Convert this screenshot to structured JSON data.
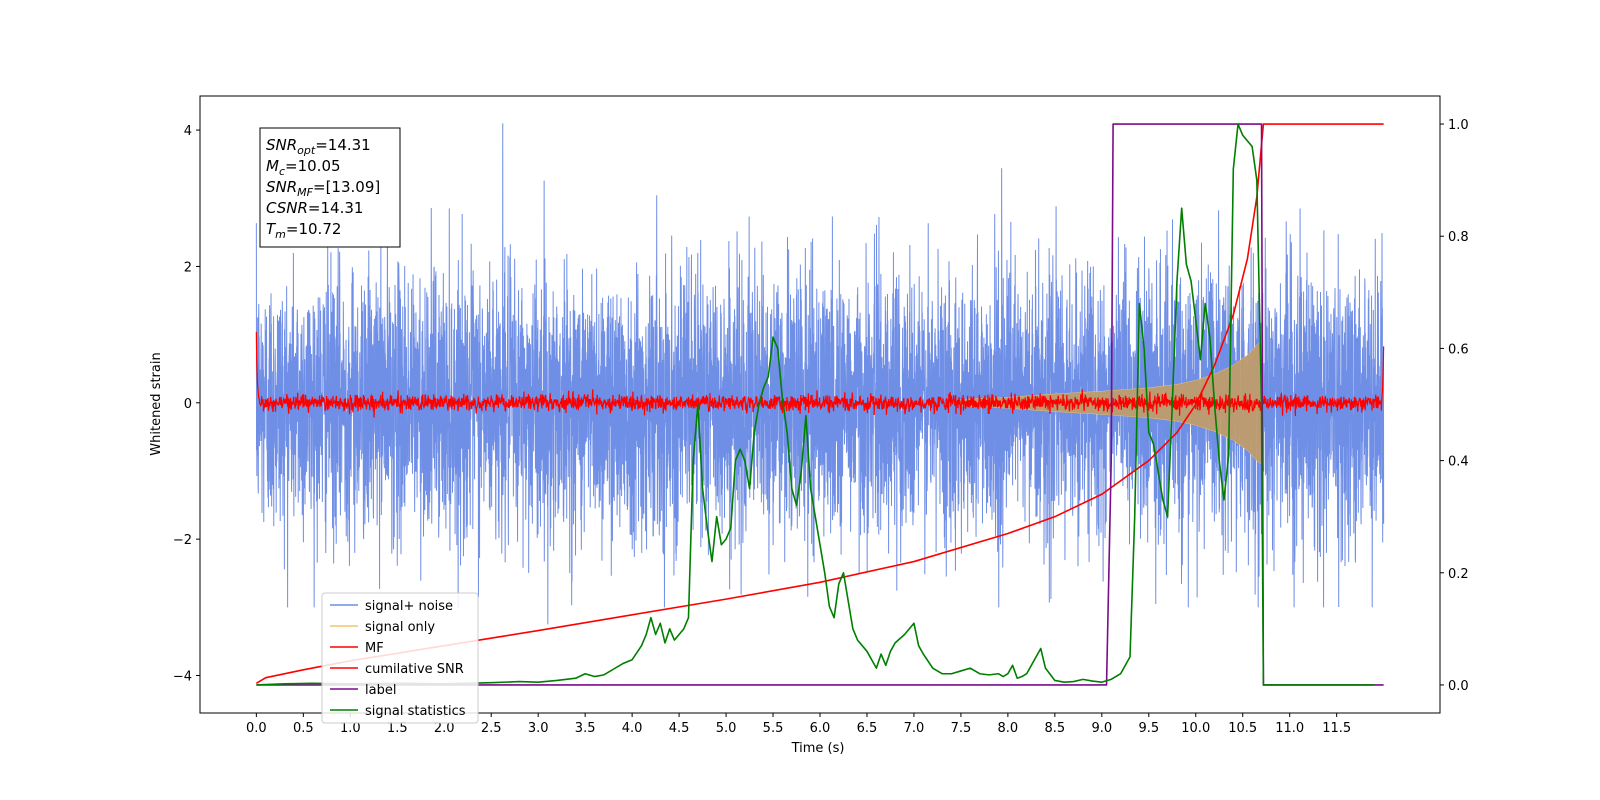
{
  "chart_data": {
    "type": "line",
    "xlabel": "Time (s)",
    "ylabel": "Whitened strain",
    "xlim": [
      -0.6,
      12.6
    ],
    "ylim": [
      -4.55,
      4.5
    ],
    "y2lim": [
      -0.05,
      1.05
    ],
    "x_ticks": [
      0.0,
      0.5,
      1.0,
      1.5,
      2.0,
      2.5,
      3.0,
      3.5,
      4.0,
      4.5,
      5.0,
      5.5,
      6.0,
      6.5,
      7.0,
      7.5,
      8.0,
      8.5,
      9.0,
      9.5,
      10.0,
      10.5,
      11.0,
      11.5
    ],
    "x_tick_labels": [
      "0.0",
      "0.5",
      "1.0",
      "1.5",
      "2.0",
      "2.5",
      "3.0",
      "3.5",
      "4.0",
      "4.5",
      "5.0",
      "5.5",
      "6.0",
      "6.5",
      "7.0",
      "7.5",
      "8.0",
      "8.5",
      "9.0",
      "9.5",
      "10.0",
      "10.5",
      "11.0",
      "11.5"
    ],
    "y_ticks": [
      4,
      2,
      0,
      -2,
      -4
    ],
    "y_tick_labels": [
      "4",
      "2",
      "0",
      "−2",
      "−4"
    ],
    "y2_ticks": [
      1.0,
      0.8,
      0.6,
      0.4,
      0.2,
      0.0
    ],
    "y2_tick_labels": [
      "1.0",
      "0.8",
      "0.6",
      "0.4",
      "0.2",
      "0.0"
    ],
    "grid": false,
    "legend_position": "lower-left",
    "stats_box": [
      {
        "sym": "SNR",
        "sub": "opt",
        "value": "=14.31"
      },
      {
        "sym": "M",
        "sub": "c",
        "value": "=10.05"
      },
      {
        "sym": "SNR",
        "sub": "MF",
        "value": "=[13.09]"
      },
      {
        "sym": "CSNR",
        "sub": "",
        "value": "=14.31"
      },
      {
        "sym": "T",
        "sub": "m",
        "value": "=10.72"
      }
    ],
    "series": [
      {
        "name": "signal+ noise",
        "axis": "left",
        "color": "#6f8ee6",
        "style": "noise",
        "x_range": [
          0.0,
          12.0
        ],
        "amplitude_std": 1.0,
        "peak_max": 4.1,
        "peak_min": -3.25
      },
      {
        "name": "signal only",
        "axis": "left",
        "color": "#f5c36b",
        "fill_color": "#bf9c6c",
        "style": "chirp-envelope",
        "x": [
          7.5,
          8.0,
          8.5,
          9.0,
          9.5,
          9.8,
          10.0,
          10.2,
          10.4,
          10.55,
          10.65,
          10.72
        ],
        "envelope": [
          0.05,
          0.08,
          0.13,
          0.17,
          0.22,
          0.27,
          0.33,
          0.42,
          0.55,
          0.7,
          0.85,
          0.92
        ]
      },
      {
        "name": "MF",
        "axis": "left",
        "color": "#ff0000",
        "style": "noise",
        "x_range": [
          0.0,
          12.0
        ],
        "amplitude_std": 0.06,
        "start_value": 1.0,
        "end_value": 0.85
      },
      {
        "name": "cumilative SNR",
        "axis": "right",
        "color": "#ff0000",
        "x": [
          0.0,
          0.1,
          0.5,
          1.0,
          2.0,
          3.0,
          4.0,
          5.0,
          6.0,
          7.0,
          8.0,
          8.5,
          9.0,
          9.5,
          9.8,
          10.0,
          10.2,
          10.4,
          10.55,
          10.65,
          10.72,
          12.0
        ],
        "y": [
          0.003,
          0.013,
          0.027,
          0.043,
          0.07,
          0.097,
          0.125,
          0.153,
          0.183,
          0.22,
          0.27,
          0.3,
          0.34,
          0.4,
          0.45,
          0.5,
          0.57,
          0.66,
          0.76,
          0.87,
          1.0,
          1.0
        ]
      },
      {
        "name": "label",
        "axis": "right",
        "color": "#7b0c8a",
        "x": [
          0.0,
          9.05,
          9.1,
          9.12,
          10.7,
          10.72,
          11.0,
          12.0
        ],
        "y": [
          0.0,
          0.0,
          0.4,
          1.0,
          1.0,
          0.0,
          0.0,
          0.0
        ]
      },
      {
        "name": "signal statistics",
        "axis": "right",
        "color": "#007f00",
        "x": [
          0.0,
          0.3,
          0.6,
          1.0,
          1.5,
          2.0,
          2.5,
          2.8,
          3.0,
          3.2,
          3.4,
          3.5,
          3.6,
          3.7,
          3.8,
          3.9,
          4.0,
          4.1,
          4.15,
          4.2,
          4.25,
          4.3,
          4.35,
          4.4,
          4.45,
          4.5,
          4.55,
          4.6,
          4.65,
          4.7,
          4.75,
          4.8,
          4.85,
          4.9,
          4.95,
          5.0,
          5.05,
          5.1,
          5.15,
          5.2,
          5.25,
          5.3,
          5.35,
          5.4,
          5.45,
          5.5,
          5.55,
          5.6,
          5.65,
          5.7,
          5.75,
          5.8,
          5.85,
          5.9,
          5.95,
          6.0,
          6.05,
          6.1,
          6.15,
          6.2,
          6.25,
          6.3,
          6.35,
          6.4,
          6.5,
          6.6,
          6.65,
          6.7,
          6.75,
          6.8,
          6.9,
          7.0,
          7.05,
          7.1,
          7.2,
          7.3,
          7.4,
          7.5,
          7.6,
          7.7,
          7.8,
          7.9,
          7.95,
          8.0,
          8.05,
          8.1,
          8.15,
          8.2,
          8.3,
          8.35,
          8.4,
          8.5,
          8.6,
          8.7,
          8.8,
          8.9,
          9.0,
          9.1,
          9.2,
          9.3,
          9.35,
          9.4,
          9.45,
          9.5,
          9.55,
          9.6,
          9.65,
          9.7,
          9.75,
          9.8,
          9.85,
          9.9,
          9.95,
          10.0,
          10.05,
          10.1,
          10.15,
          10.2,
          10.25,
          10.3,
          10.35,
          10.4,
          10.45,
          10.5,
          10.55,
          10.6,
          10.65,
          10.7,
          10.72,
          10.75,
          10.8,
          11.0,
          11.5,
          11.9
        ],
        "y": [
          0.0,
          0.002,
          0.003,
          0.002,
          0.003,
          0.002,
          0.004,
          0.006,
          0.005,
          0.008,
          0.012,
          0.02,
          0.015,
          0.018,
          0.028,
          0.038,
          0.045,
          0.07,
          0.09,
          0.12,
          0.09,
          0.11,
          0.075,
          0.1,
          0.08,
          0.09,
          0.1,
          0.12,
          0.4,
          0.5,
          0.35,
          0.28,
          0.22,
          0.3,
          0.25,
          0.26,
          0.28,
          0.4,
          0.42,
          0.4,
          0.35,
          0.45,
          0.5,
          0.53,
          0.55,
          0.62,
          0.6,
          0.51,
          0.45,
          0.35,
          0.32,
          0.38,
          0.48,
          0.35,
          0.3,
          0.25,
          0.2,
          0.14,
          0.12,
          0.18,
          0.2,
          0.15,
          0.1,
          0.08,
          0.06,
          0.03,
          0.055,
          0.035,
          0.06,
          0.075,
          0.09,
          0.11,
          0.07,
          0.055,
          0.03,
          0.02,
          0.02,
          0.025,
          0.03,
          0.02,
          0.018,
          0.02,
          0.015,
          0.02,
          0.035,
          0.012,
          0.015,
          0.02,
          0.05,
          0.065,
          0.03,
          0.008,
          0.005,
          0.006,
          0.01,
          0.007,
          0.005,
          0.01,
          0.02,
          0.05,
          0.3,
          0.68,
          0.6,
          0.45,
          0.43,
          0.38,
          0.33,
          0.3,
          0.5,
          0.72,
          0.85,
          0.75,
          0.72,
          0.65,
          0.58,
          0.68,
          0.62,
          0.5,
          0.4,
          0.33,
          0.41,
          0.92,
          1.0,
          0.98,
          0.97,
          0.96,
          0.9,
          0.5,
          0.0,
          0.0,
          0.0,
          0.0,
          0.0,
          0.0
        ]
      }
    ]
  }
}
